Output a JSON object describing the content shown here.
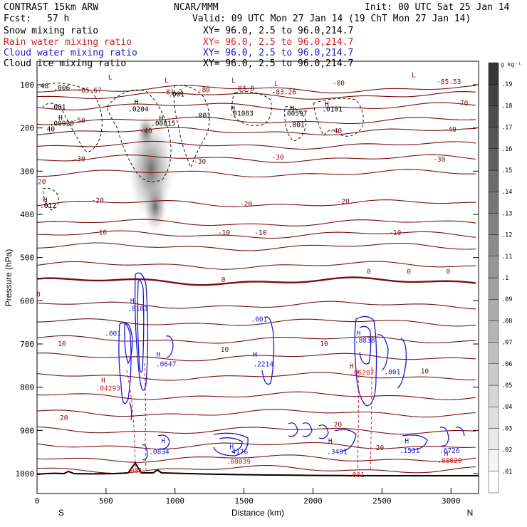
{
  "header": {
    "model": "CONTRAST 15km ARW",
    "org": "NCAR/MMM",
    "init": "Init: 00 UTC Sat 25 Jan 14",
    "fcst_label": "Fcst:",
    "fcst_value": "57 h",
    "valid": "Valid: 09 UTC Mon 27 Jan 14 (19 ChT Mon 27 Jan 14)",
    "fields": [
      {
        "name": "Snow mixing ratio",
        "xy": "XY=  96.0,  2.5 to  96.0,214.7",
        "color": "#000000"
      },
      {
        "name": "Rain water mixing ratio",
        "xy": "XY=  96.0,  2.5 to  96.0,214.7",
        "color": "#d42020"
      },
      {
        "name": "Cloud water mixing ratio",
        "xy": "XY=  96.0,  2.5 to  96.0,214.7",
        "color": "#1a1ad0"
      },
      {
        "name": "Cloud ice mixing ratio",
        "xy": "XY=  96.0,  2.5 to  96.0,214.7",
        "color": "#000000"
      }
    ]
  },
  "chart_data": {
    "type": "contour",
    "xlabel": "Distance (km)",
    "ylabel": "Pressure (hPa)",
    "xlim": [
      0,
      3200
    ],
    "ylim": [
      1050,
      70
    ],
    "x_ticks": [
      0,
      500,
      1000,
      1500,
      2000,
      2500,
      3000
    ],
    "y_ticks": [
      100,
      200,
      300,
      400,
      500,
      600,
      700,
      800,
      900,
      1000
    ],
    "x_end_labels": {
      "left": "S",
      "right": "N"
    },
    "colorbar": {
      "unit": "g kg⁻¹",
      "levels": [
        ".01",
        ".02",
        ".03",
        ".04",
        ".05",
        ".06",
        ".07",
        ".08",
        ".09",
        ".1",
        ".11",
        ".12",
        ".13",
        ".14",
        ".15",
        ".16",
        ".17",
        ".18",
        ".19"
      ]
    },
    "temperature_lines": [
      {
        "p": 110,
        "label": "-80"
      },
      {
        "p": 125,
        "label": "-70"
      },
      {
        "p": 150,
        "label": "-60"
      },
      {
        "p": 183,
        "label": "-50"
      },
      {
        "p": 208,
        "label": "-40"
      },
      {
        "p": 240,
        "label": "-30"
      },
      {
        "p": 271,
        "label": "-30"
      },
      {
        "p": 305,
        "label": "-20"
      },
      {
        "p": 375,
        "label": "-20"
      },
      {
        "p": 420,
        "label": "-10"
      },
      {
        "p": 447,
        "label": "-10"
      },
      {
        "p": 475,
        "label": ""
      },
      {
        "p": 518,
        "label": ""
      },
      {
        "p": 555,
        "label": "0"
      },
      {
        "p": 610,
        "label": ""
      },
      {
        "p": 650,
        "label": ""
      },
      {
        "p": 690,
        "label": "10"
      },
      {
        "p": 730,
        "label": "10"
      },
      {
        "p": 775,
        "label": "10"
      },
      {
        "p": 820,
        "label": ""
      },
      {
        "p": 860,
        "label": "20"
      },
      {
        "p": 900,
        "label": "20"
      },
      {
        "p": 935,
        "label": "20"
      },
      {
        "p": 965,
        "label": ""
      },
      {
        "p": 990,
        "label": ""
      }
    ],
    "labels_temperature": [
      {
        "x": 380,
        "p": 118,
        "text": "-85.67"
      },
      {
        "x": 980,
        "p": 122,
        "text": "-81.2"
      },
      {
        "x": 1500,
        "p": 114,
        "text": "-83.8"
      },
      {
        "x": 1790,
        "p": 122,
        "text": "-83.26"
      },
      {
        "x": 2985,
        "p": 98,
        "text": "-85.53"
      },
      {
        "x": 1210,
        "p": 117,
        "text": "-80"
      },
      {
        "x": 2185,
        "p": 102,
        "text": "-80"
      },
      {
        "x": 3080,
        "p": 148,
        "text": "-70"
      },
      {
        "x": 305,
        "p": 188,
        "text": "-50"
      },
      {
        "x": 790,
        "p": 212,
        "text": "-40"
      },
      {
        "x": 2165,
        "p": 212,
        "text": "-40"
      },
      {
        "x": 2995,
        "p": 209,
        "text": "-40"
      },
      {
        "x": 305,
        "p": 277,
        "text": "-30"
      },
      {
        "x": 1180,
        "p": 283,
        "text": "-30"
      },
      {
        "x": 1745,
        "p": 273,
        "text": "-30"
      },
      {
        "x": 2915,
        "p": 278,
        "text": "-30"
      },
      {
        "x": 440,
        "p": 373,
        "text": "-20"
      },
      {
        "x": 1515,
        "p": 381,
        "text": "-20"
      },
      {
        "x": 2220,
        "p": 375,
        "text": "-20"
      },
      {
        "x": 462,
        "p": 447,
        "text": "-10"
      },
      {
        "x": 1355,
        "p": 448,
        "text": "-10"
      },
      {
        "x": 1620,
        "p": 448,
        "text": "-10"
      },
      {
        "x": 2595,
        "p": 448,
        "text": "-10"
      },
      {
        "x": 1350,
        "p": 557,
        "text": "0"
      },
      {
        "x": 2405,
        "p": 538,
        "text": "0"
      },
      {
        "x": 2695,
        "p": 538,
        "text": "0"
      },
      {
        "x": 2980,
        "p": 538,
        "text": "0"
      },
      {
        "x": 10,
        "p": 590,
        "text": "0"
      },
      {
        "x": 180,
        "p": 705,
        "text": "10"
      },
      {
        "x": 1360,
        "p": 718,
        "text": "10"
      },
      {
        "x": 2080,
        "p": 705,
        "text": "10"
      },
      {
        "x": 2810,
        "p": 768,
        "text": "10"
      },
      {
        "x": 195,
        "p": 876,
        "text": "20"
      },
      {
        "x": 2180,
        "p": 892,
        "text": "20"
      },
      {
        "x": 2485,
        "p": 946,
        "text": "20"
      },
      {
        "x": 20,
        "p": 330,
        "text": "-20"
      },
      {
        "x": 530,
        "p": 88,
        "text": "L"
      },
      {
        "x": 940,
        "p": 95,
        "text": "L"
      },
      {
        "x": 1425,
        "p": 95,
        "text": "L"
      },
      {
        "x": 1735,
        "p": 103,
        "text": "L"
      },
      {
        "x": 2730,
        "p": 83,
        "text": "L"
      },
      {
        "x": 480,
        "p": 790,
        "text": "H"
      },
      {
        "x": 2280,
        "p": 757,
        "text": "H"
      },
      {
        "x": 2965,
        "p": 960,
        "text": "H"
      }
    ],
    "labels_red": [
      {
        "x": 515,
        "p": 808,
        "text": ".04293"
      },
      {
        "x": 2355,
        "p": 772,
        "text": ".06787"
      },
      {
        "x": 1460,
        "p": 978,
        "text": ".00039"
      },
      {
        "x": 2990,
        "p": 975,
        "text": ".00020"
      },
      {
        "x": 705,
        "p": 998,
        "text": ".001"
      },
      {
        "x": 2315,
        "p": 1008,
        "text": ".001"
      }
    ],
    "labels_blue": [
      {
        "x": 690,
        "p": 605,
        "text": "H"
      },
      {
        "x": 730,
        "p": 623,
        "text": ".8181"
      },
      {
        "x": 550,
        "p": 681,
        "text": ".001"
      },
      {
        "x": 880,
        "p": 730,
        "text": "H"
      },
      {
        "x": 935,
        "p": 752,
        "text": ".0647"
      },
      {
        "x": 1610,
        "p": 648,
        "text": ".001"
      },
      {
        "x": 1580,
        "p": 730,
        "text": "H"
      },
      {
        "x": 1640,
        "p": 752,
        "text": ".2214"
      },
      {
        "x": 2330,
        "p": 680,
        "text": "H"
      },
      {
        "x": 2375,
        "p": 697,
        "text": ".8838"
      },
      {
        "x": 2575,
        "p": 770,
        "text": ".001"
      },
      {
        "x": 915,
        "p": 930,
        "text": "H"
      },
      {
        "x": 885,
        "p": 955,
        "text": ".0834"
      },
      {
        "x": 1410,
        "p": 943,
        "text": "H"
      },
      {
        "x": 1470,
        "p": 955,
        "text": "4176"
      },
      {
        "x": 2125,
        "p": 930,
        "text": "H"
      },
      {
        "x": 2175,
        "p": 955,
        "text": ".3401"
      },
      {
        "x": 2680,
        "p": 930,
        "text": "H"
      },
      {
        "x": 2700,
        "p": 952,
        "text": ".1531"
      },
      {
        "x": 2990,
        "p": 952,
        "text": ".6726"
      }
    ],
    "labels_snow": [
      {
        "x": 40,
        "p": 108,
        "text": ".48"
      },
      {
        "x": 180,
        "p": 112,
        "text": ".006"
      },
      {
        "x": 150,
        "p": 157,
        "text": ".001"
      },
      {
        "x": 720,
        "p": 145,
        "text": "H"
      },
      {
        "x": 735,
        "p": 162,
        "text": ".0204"
      },
      {
        "x": 900,
        "p": 183,
        "text": "H"
      },
      {
        "x": 915,
        "p": 195,
        "text": ".00815"
      },
      {
        "x": 170,
        "p": 182,
        "text": "H"
      },
      {
        "x": 180,
        "p": 195,
        "text": ".00920"
      },
      {
        "x": 1010,
        "p": 127,
        "text": ".001"
      },
      {
        "x": 1200,
        "p": 177,
        "text": ".001"
      },
      {
        "x": 1420,
        "p": 160,
        "text": "H"
      },
      {
        "x": 1480,
        "p": 172,
        "text": ".01083"
      },
      {
        "x": 1850,
        "p": 160,
        "text": "H"
      },
      {
        "x": 1870,
        "p": 172,
        "text": ".00597"
      },
      {
        "x": 2100,
        "p": 150,
        "text": "H"
      },
      {
        "x": 2140,
        "p": 162,
        "text": ".0101"
      },
      {
        "x": 1880,
        "p": 198,
        "text": ".001"
      },
      {
        "x": 100,
        "p": 208,
        "text": "40"
      },
      {
        "x": 60,
        "p": 372,
        "text": "H"
      },
      {
        "x": 80,
        "p": 385,
        "text": ".012"
      }
    ]
  }
}
